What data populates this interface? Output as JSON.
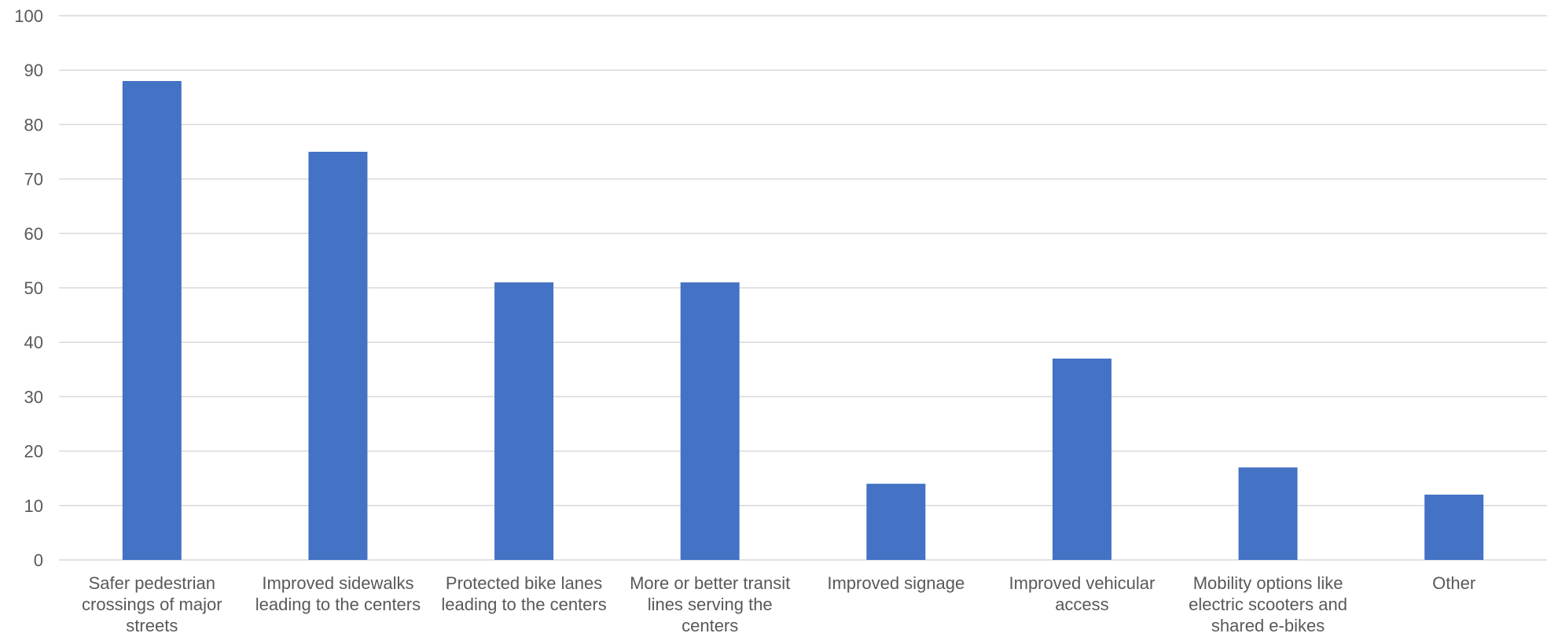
{
  "chart_data": {
    "type": "bar",
    "categories": [
      [
        "Safer pedestrian",
        "crossings of major",
        "streets"
      ],
      [
        "Improved sidewalks",
        "leading to the centers"
      ],
      [
        "Protected bike lanes",
        "leading to the centers"
      ],
      [
        "More or better transit",
        "lines serving the",
        "centers"
      ],
      [
        "Improved signage"
      ],
      [
        "Improved vehicular",
        "access"
      ],
      [
        "Mobility options like",
        "electric scooters and",
        "shared e-bikes"
      ],
      [
        "Other"
      ]
    ],
    "values": [
      88,
      75,
      51,
      51,
      14,
      37,
      17,
      12
    ],
    "ylim": [
      0,
      100
    ],
    "yticks": [
      0,
      10,
      20,
      30,
      40,
      50,
      60,
      70,
      80,
      90,
      100
    ],
    "grid": true,
    "legend": "none",
    "colors": {
      "bar": "#4472C4",
      "grid": "#D9D9D9",
      "text": "#595959"
    }
  }
}
